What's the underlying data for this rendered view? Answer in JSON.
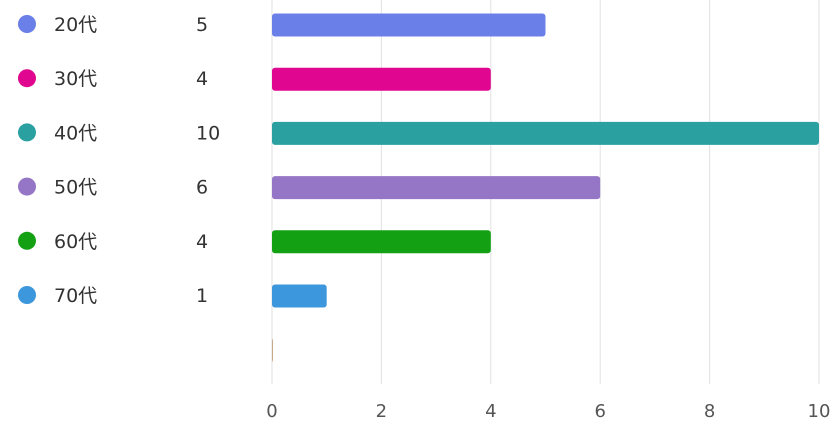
{
  "chart_data": {
    "type": "bar",
    "orientation": "horizontal",
    "categories": [
      "20代",
      "30代",
      "40代",
      "50代",
      "60代",
      "70代",
      ""
    ],
    "values": [
      5,
      4,
      10,
      6,
      4,
      1,
      0
    ],
    "colors": [
      "#6b7fe8",
      "#e0068f",
      "#2aa0a0",
      "#9575c6",
      "#13a113",
      "#3d97dc",
      "#c9a98a"
    ],
    "xlim": [
      0,
      10
    ],
    "xticks": [
      0,
      2,
      4,
      6,
      8,
      10
    ],
    "title": "",
    "xlabel": "",
    "ylabel": "",
    "grid": "vertical",
    "legend": "left (colored dot per category with count)"
  }
}
